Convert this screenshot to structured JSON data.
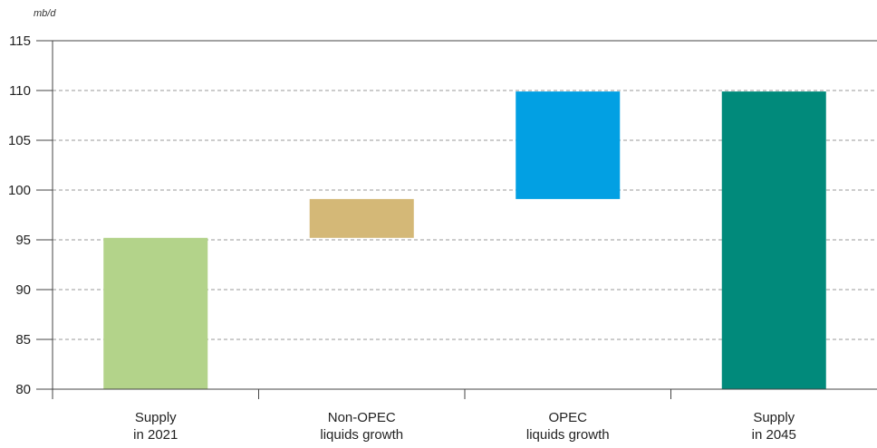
{
  "chart_data": {
    "type": "bar",
    "subtype": "waterfall",
    "ylabel": "mb/d",
    "ylim": [
      80,
      115
    ],
    "yticks": [
      80,
      85,
      90,
      95,
      100,
      105,
      110,
      115
    ],
    "grid": "horizontal-dashed",
    "categories": [
      {
        "lines": [
          "Supply",
          "in 2021"
        ],
        "start": 80,
        "end": 95.2,
        "color": "#b3d38a"
      },
      {
        "lines": [
          "Non-OPEC",
          "liquids growth"
        ],
        "start": 95.2,
        "end": 99.1,
        "color": "#d4b877"
      },
      {
        "lines": [
          "OPEC",
          "liquids growth"
        ],
        "start": 99.1,
        "end": 109.9,
        "color": "#02a0e3"
      },
      {
        "lines": [
          "Supply",
          "in 2045"
        ],
        "start": 80,
        "end": 109.9,
        "color": "#018a7b"
      }
    ]
  }
}
